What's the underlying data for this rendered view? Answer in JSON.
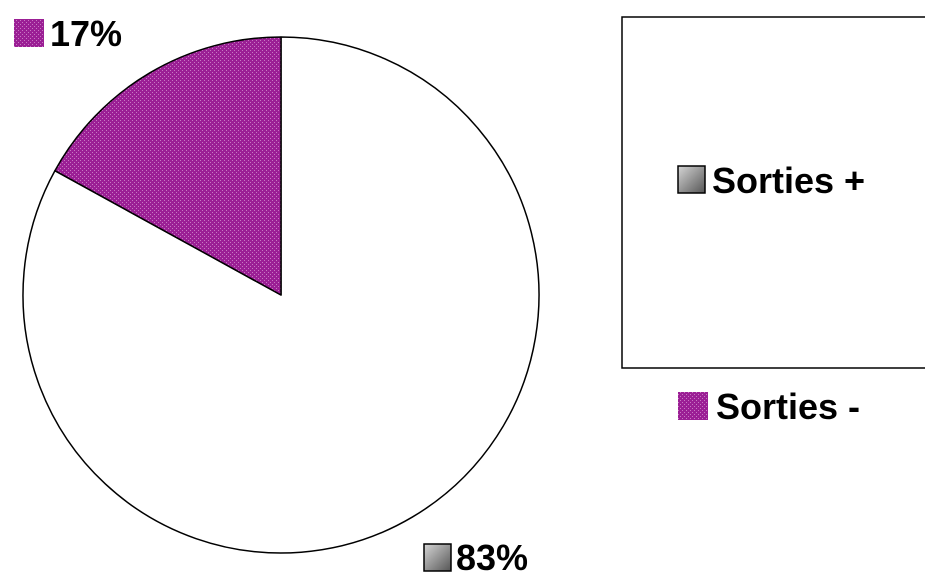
{
  "chart_data": {
    "type": "pie",
    "categories": [
      "Sorties +",
      "Sorties -"
    ],
    "values": [
      83,
      17
    ],
    "data_labels": [
      "83%",
      "17%"
    ],
    "colors": [
      "#ffffff",
      "#9b1f95"
    ],
    "legend_swatch_colors": [
      "#808080",
      "#9b1f95"
    ],
    "legend_position": "right",
    "start_angle": "12 o'clock",
    "direction": "clockwise",
    "title": ""
  }
}
